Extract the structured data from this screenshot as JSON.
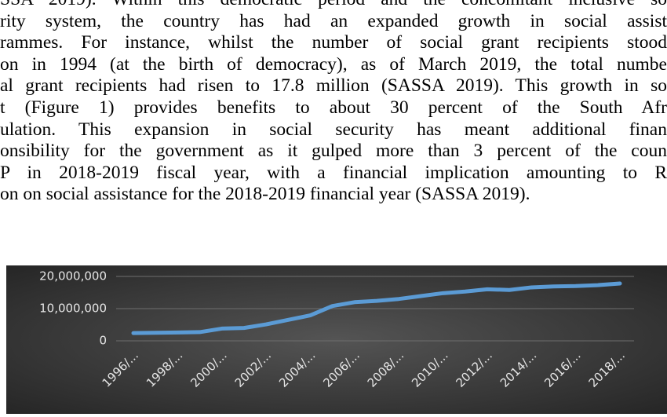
{
  "paragraph": {
    "lines": [
      "SSA 2019). Within this democratic period and the concomitant inclusive so",
      "rity system, the country has had an expanded growth in social assist",
      "rammes. For instance, whilst the number of social grant recipients stood",
      "on in 1994 (at the birth of democracy), as of March 2019, the total numbe",
      "al grant recipients had risen to 17.8 million (SASSA 2019). This growth in so",
      "t (Figure 1) provides benefits to about 30 percent of the South Afr",
      "ulation. This expansion in social security has meant additional finan",
      "onsibility for the government as it gulped more than 3 percent of the coun",
      "P in 2018-2019 fiscal year, with a financial implication amounting to R",
      "on on social assistance for the 2018-2019 financial year (SASSA 2019)."
    ]
  },
  "chart_data": {
    "type": "line",
    "categories": [
      "1996/...",
      null,
      "1998/...",
      null,
      "2000/...",
      null,
      "2002/...",
      null,
      "2004/...",
      null,
      "2006/...",
      null,
      "2008/...",
      null,
      "2010/...",
      null,
      "2012/...",
      null,
      "2014/...",
      null,
      "2016/...",
      null,
      "2018/..."
    ],
    "values": [
      2400000,
      2500000,
      2600000,
      2700000,
      3800000,
      4000000,
      5100000,
      6500000,
      7900000,
      10800000,
      12000000,
      12400000,
      13000000,
      13900000,
      14800000,
      15300000,
      16000000,
      15800000,
      16600000,
      16900000,
      17000000,
      17300000,
      17800000
    ],
    "color": "#5b9bd5",
    "ylim": [
      0,
      20000000
    ],
    "yticks": [
      0,
      {
        "value": 10000000,
        "label": "10,000,000"
      },
      {
        "value": 20000000,
        "label": "20,000,000"
      }
    ],
    "grid": true
  }
}
